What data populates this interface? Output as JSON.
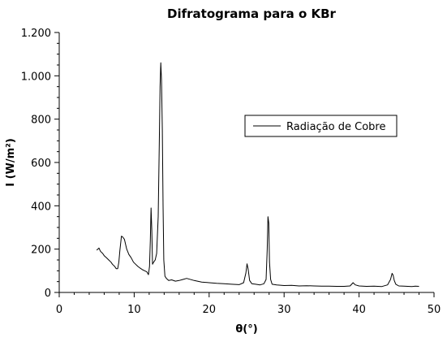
{
  "chart_data": {
    "type": "line",
    "title": "Difratograma para o KBr",
    "xlabel": "θ(°)",
    "ylabel": "I (W/m²)",
    "xlim": [
      0,
      50
    ],
    "ylim": [
      0,
      1200
    ],
    "x_ticks": [
      0,
      10,
      20,
      30,
      40,
      50
    ],
    "x_tick_labels": [
      "0",
      "10",
      "20",
      "30",
      "40",
      "50"
    ],
    "y_ticks": [
      0,
      200,
      400,
      600,
      800,
      1000,
      1200
    ],
    "y_tick_labels": [
      "0",
      "200",
      "400",
      "600",
      "800",
      "1.000",
      "1.200"
    ],
    "grid": false,
    "legend_position": "upper-right",
    "series": [
      {
        "name": "Radiação de Cobre",
        "color": "#000000",
        "x": [
          5.0,
          5.3,
          5.5,
          5.8,
          6.0,
          6.3,
          6.6,
          6.9,
          7.1,
          7.4,
          7.6,
          7.8,
          7.95,
          8.1,
          8.3,
          8.5,
          8.7,
          9.0,
          9.3,
          9.6,
          9.9,
          10.2,
          10.5,
          10.8,
          11.1,
          11.4,
          11.7,
          11.9,
          12.05,
          12.15,
          12.25,
          12.35,
          12.45,
          12.6,
          12.8,
          13.0,
          13.2,
          13.35,
          13.45,
          13.55,
          13.65,
          13.75,
          13.85,
          13.95,
          14.1,
          14.3,
          14.6,
          15.0,
          15.5,
          16.0,
          16.5,
          17.0,
          18.0,
          19.0,
          20.0,
          21.0,
          22.0,
          23.0,
          24.0,
          24.6,
          24.9,
          25.05,
          25.2,
          25.4,
          25.7,
          26.2,
          26.8,
          27.3,
          27.6,
          27.75,
          27.85,
          27.95,
          28.05,
          28.2,
          28.4,
          29.0,
          30.0,
          31.0,
          32.0,
          33.0,
          34.0,
          35.0,
          36.0,
          37.0,
          38.0,
          38.8,
          39.2,
          39.5,
          40.0,
          41.0,
          42.0,
          43.0,
          43.8,
          44.2,
          44.4,
          44.55,
          44.7,
          44.9,
          45.3,
          46.0,
          46.5,
          47.0,
          47.5,
          48.0
        ],
        "y": [
          195,
          205,
          190,
          180,
          170,
          160,
          150,
          140,
          130,
          120,
          110,
          110,
          140,
          195,
          260,
          255,
          245,
          200,
          175,
          160,
          140,
          130,
          120,
          112,
          105,
          100,
          95,
          82,
          120,
          240,
          390,
          290,
          130,
          140,
          150,
          180,
          350,
          700,
          950,
          1060,
          980,
          750,
          400,
          150,
          75,
          65,
          55,
          58,
          52,
          55,
          60,
          65,
          55,
          48,
          45,
          42,
          40,
          38,
          36,
          45,
          90,
          132,
          110,
          55,
          40,
          38,
          35,
          40,
          60,
          200,
          350,
          320,
          140,
          60,
          38,
          35,
          32,
          33,
          30,
          31,
          30,
          29,
          29,
          28,
          28,
          30,
          45,
          35,
          30,
          28,
          29,
          27,
          35,
          60,
          88,
          80,
          55,
          38,
          30,
          29,
          28,
          27,
          29,
          28
        ]
      }
    ]
  }
}
